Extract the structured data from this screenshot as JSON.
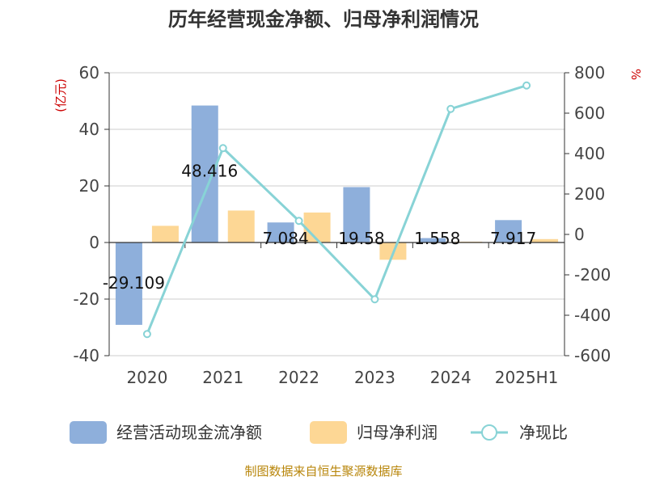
{
  "chart_data": {
    "type": "bar",
    "title": "历年经营现金净额、归母净利润情况",
    "categories": [
      "2020",
      "2021",
      "2022",
      "2023",
      "2024",
      "2025H1"
    ],
    "series": [
      {
        "name": "经营活动现金流净额",
        "kind": "bar",
        "axis": "left",
        "color": "#8eafdb",
        "values": [
          -29.109,
          48.416,
          7.084,
          19.58,
          1.558,
          7.917
        ],
        "labels": [
          "-29.109",
          "48.416",
          "7.084",
          "19.58",
          "1.558",
          "7.917"
        ]
      },
      {
        "name": "归母净利润",
        "kind": "bar",
        "axis": "left",
        "color": "#fdd795",
        "values": [
          5.9,
          11.3,
          10.6,
          -6.1,
          0.3,
          1.2
        ]
      },
      {
        "name": "净现比",
        "kind": "line",
        "axis": "right",
        "color": "#88d3d6",
        "values": [
          -493,
          427,
          67,
          -321,
          621,
          737
        ]
      }
    ],
    "y_left": {
      "unit": "(亿元)",
      "ylim": [
        -40,
        60
      ],
      "ticks": [
        "60",
        "40",
        "20",
        "0",
        "-20",
        "-40"
      ]
    },
    "y_right": {
      "unit": "%",
      "ylim": [
        -600,
        800
      ],
      "ticks": [
        "800",
        "600",
        "400",
        "200",
        "0",
        "-200",
        "-400",
        "-600"
      ]
    },
    "grid": true,
    "legend": "bottom"
  },
  "footer": {
    "source": "制图数据来自恒生聚源数据库"
  }
}
